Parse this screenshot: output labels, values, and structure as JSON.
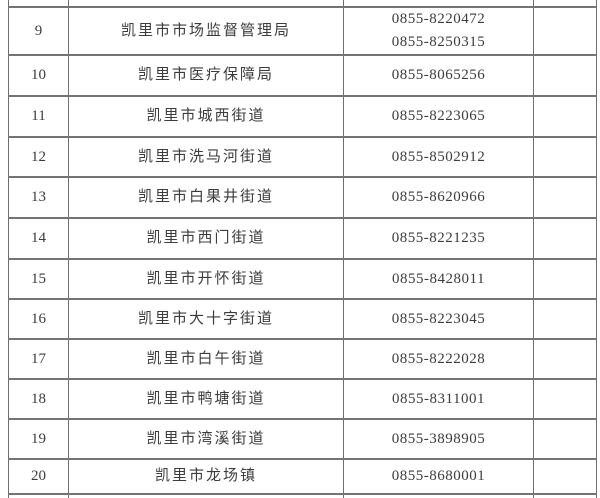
{
  "table": {
    "description_rows": "contact directory rows 9-20, columns: index | organization name | phone | blank",
    "rows": [
      {
        "index": "9",
        "name": "凯里市市场监督管理局",
        "phones": [
          "0855-8220472",
          "0855-8250315"
        ]
      },
      {
        "index": "10",
        "name": "凯里市医疗保障局",
        "phones": [
          "0855-8065256"
        ]
      },
      {
        "index": "11",
        "name": "凯里市城西街道",
        "phones": [
          "0855-8223065"
        ]
      },
      {
        "index": "12",
        "name": "凯里市洗马河街道",
        "phones": [
          "0855-8502912"
        ]
      },
      {
        "index": "13",
        "name": "凯里市白果井街道",
        "phones": [
          "0855-8620966"
        ]
      },
      {
        "index": "14",
        "name": "凯里市西门街道",
        "phones": [
          "0855-8221235"
        ]
      },
      {
        "index": "15",
        "name": "凯里市开怀街道",
        "phones": [
          "0855-8428011"
        ]
      },
      {
        "index": "16",
        "name": "凯里市大十字街道",
        "phones": [
          "0855-8223045"
        ]
      },
      {
        "index": "17",
        "name": "凯里市白午街道",
        "phones": [
          "0855-8222028"
        ]
      },
      {
        "index": "18",
        "name": "凯里市鸭塘街道",
        "phones": [
          "0855-8311001"
        ]
      },
      {
        "index": "19",
        "name": "凯里市湾溪街道",
        "phones": [
          "0855-3898905"
        ]
      },
      {
        "index": "20",
        "name": "凯里市龙场镇",
        "phones": [
          "0855-8680001"
        ]
      }
    ]
  },
  "colors": {
    "border": "#6f6f6f",
    "text": "#3c3c3c",
    "background": "#ffffff"
  }
}
